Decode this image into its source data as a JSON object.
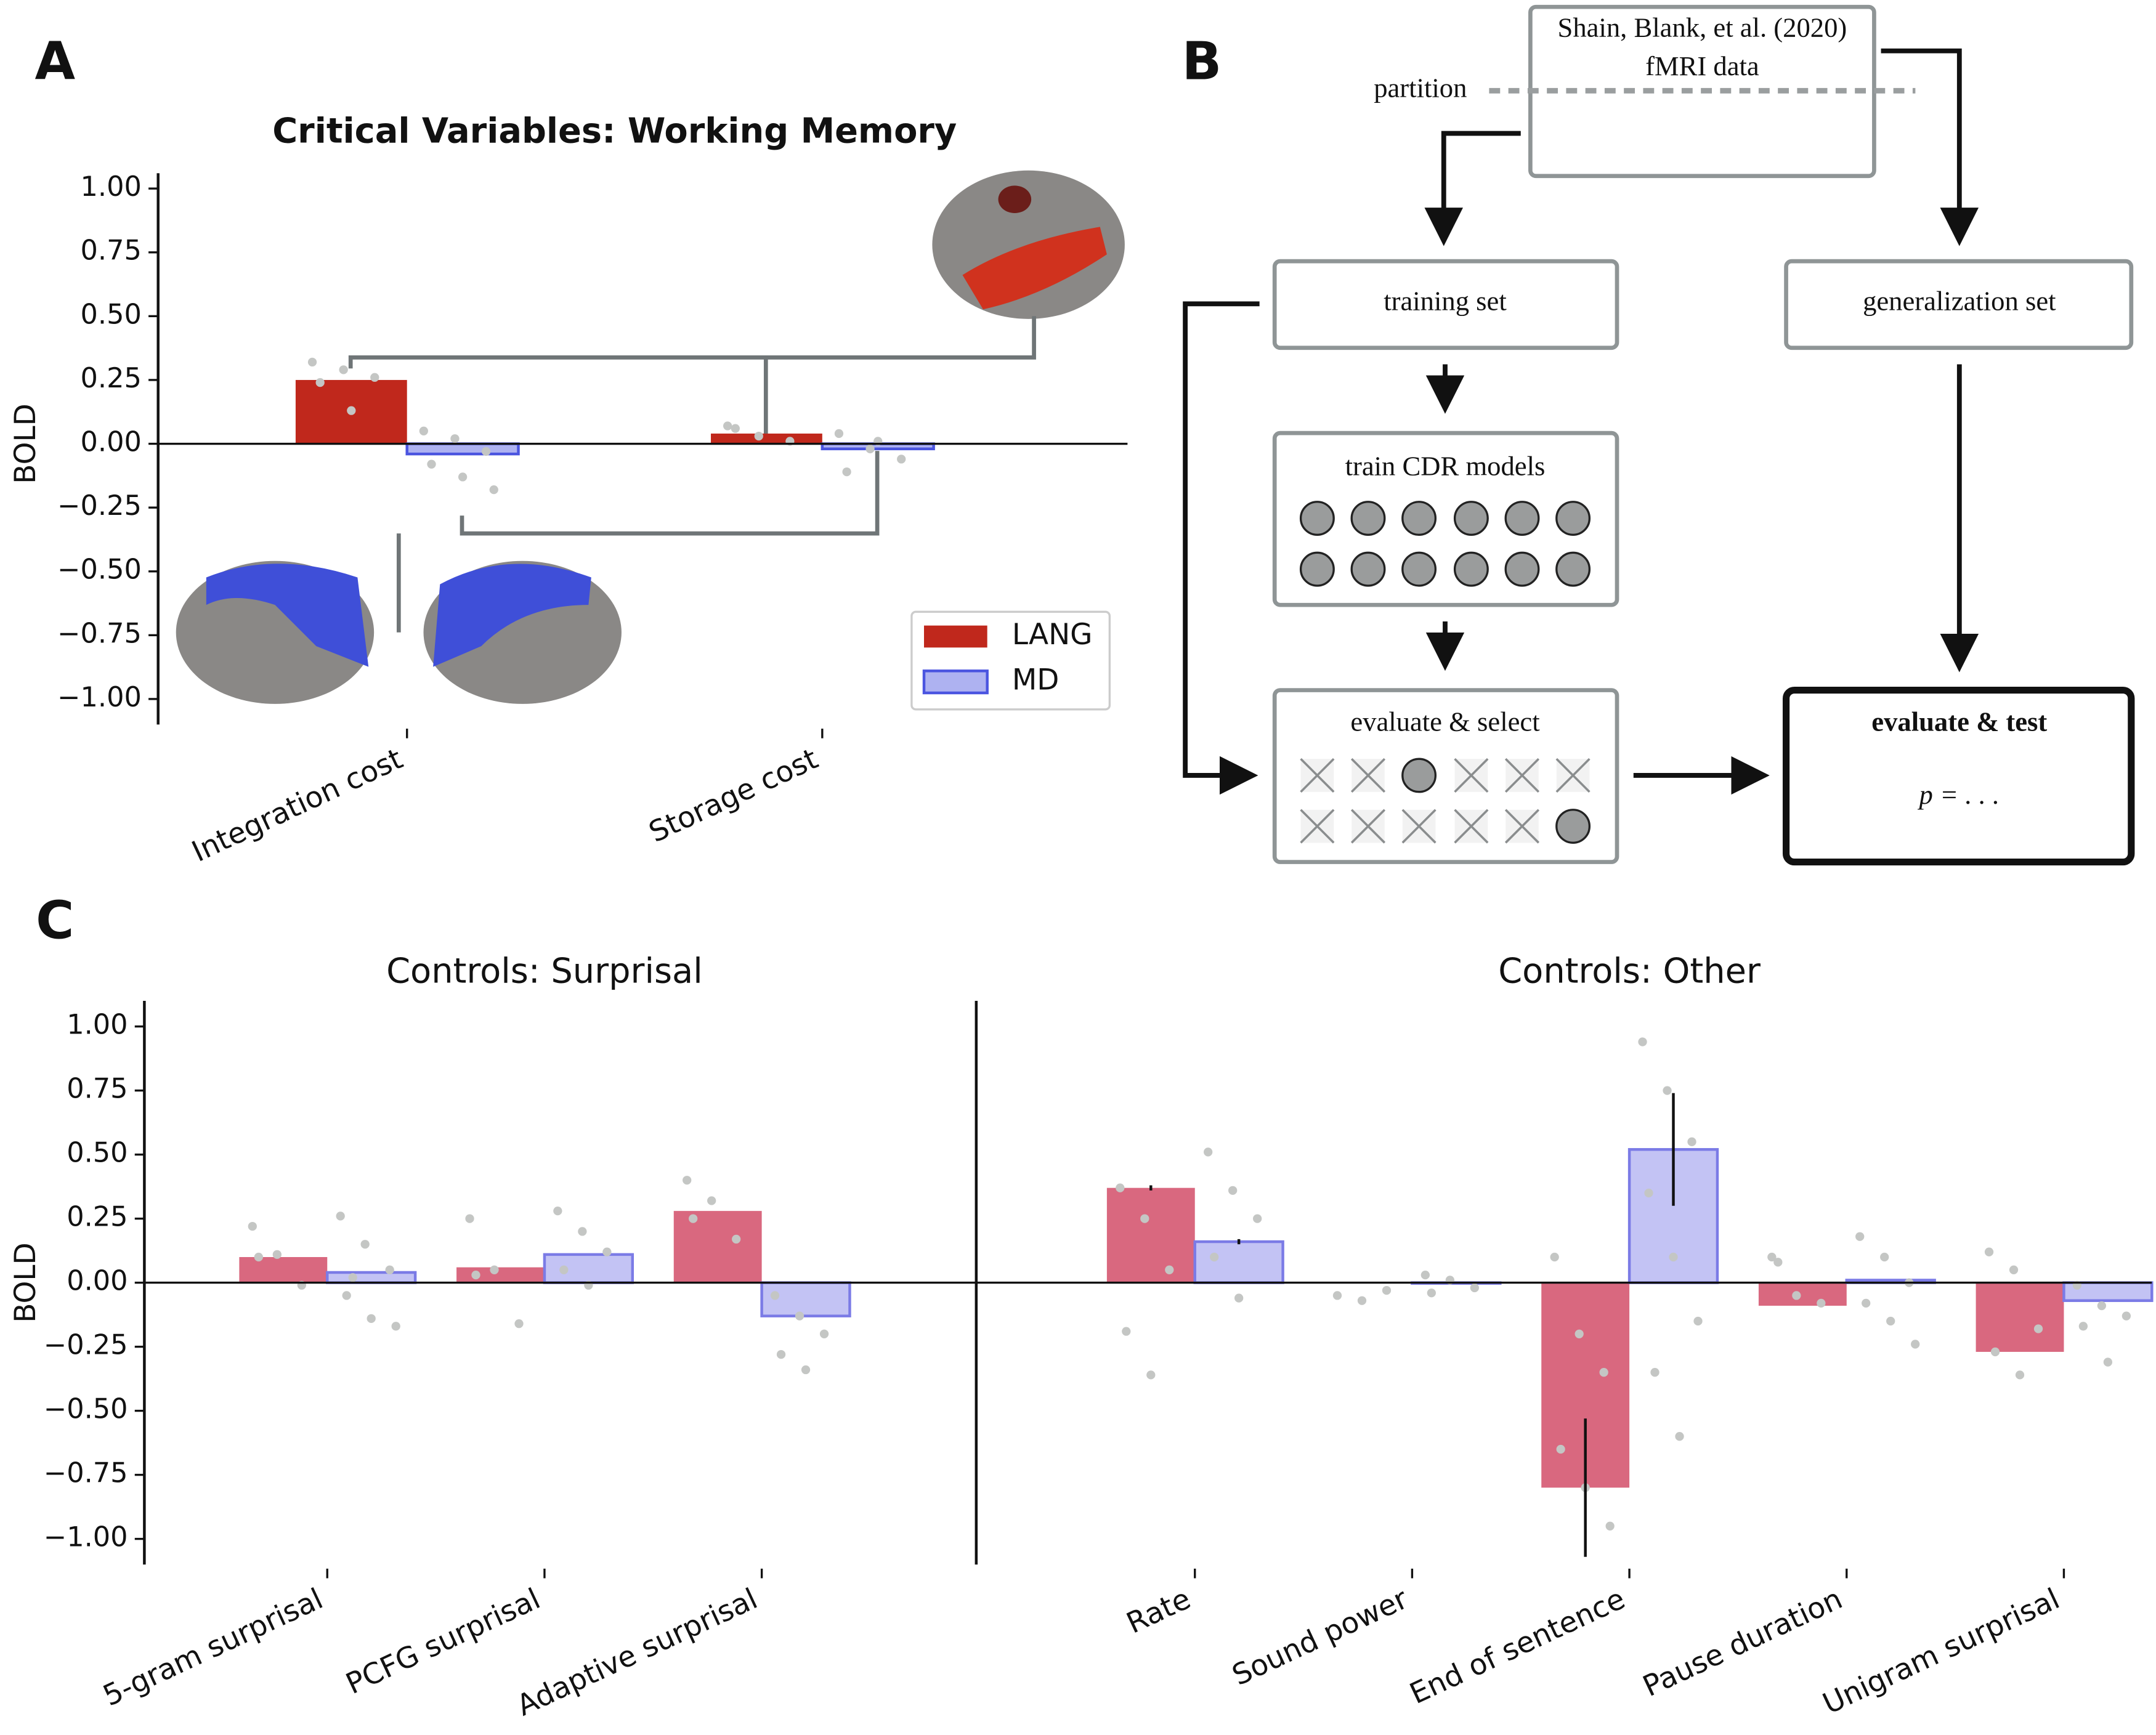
{
  "panel_labels": [
    "A",
    "B",
    "C"
  ],
  "chart_data": [
    {
      "type": "bar",
      "title": "Critical Variables: Working Memory",
      "ylabel": "BOLD",
      "categories": [
        "Integration cost",
        "Storage cost"
      ],
      "series": [
        {
          "name": "LANG",
          "color": "#c0281c",
          "values": [
            0.25,
            0.04
          ],
          "points": [
            [
              0.32,
              0.29,
              0.26,
              0.24,
              0.13
            ],
            [
              0.07,
              0.03,
              0.01,
              0.06
            ]
          ]
        },
        {
          "name": "MD",
          "color": "#4b55e0",
          "values": [
            -0.04,
            -0.02
          ],
          "points": [
            [
              0.05,
              0.02,
              -0.03,
              -0.08,
              -0.13,
              -0.18
            ],
            [
              0.04,
              -0.02,
              -0.06,
              -0.11,
              0.01
            ]
          ]
        }
      ],
      "ylim": [
        -1.1,
        1.06
      ],
      "yticks": [
        {
          "value": 1,
          "label": "1.00"
        },
        {
          "value": 0.75,
          "label": "0.75"
        },
        {
          "value": 0.5,
          "label": "0.50"
        },
        {
          "value": 0.25,
          "label": "0.25"
        },
        {
          "value": 0,
          "label": "0.00"
        },
        {
          "value": -0.25,
          "label": "−0.25"
        },
        {
          "value": -0.5,
          "label": "−0.50"
        },
        {
          "value": -0.75,
          "label": "−0.75"
        },
        {
          "value": -1,
          "label": "−1.00"
        }
      ],
      "legend": "lower right"
    },
    {
      "type": "bar",
      "title": "Controls: Surprisal",
      "ylabel": "BOLD",
      "categories": [
        "5-gram surprisal",
        "PCFG surprisal",
        "Adaptive surprisal"
      ],
      "series": [
        {
          "color": "#d9687f",
          "values": [
            0.1,
            0.06,
            0.28
          ],
          "points": [
            [
              0.22,
              0.11,
              -0.01,
              0.1
            ],
            [
              0.25,
              0.05,
              -0.16,
              0.03
            ],
            [
              0.4,
              0.32,
              0.17,
              0.25
            ]
          ]
        },
        {
          "color": "#7b7be6",
          "values": [
            0.04,
            0.11,
            -0.13
          ],
          "points": [
            [
              0.26,
              0.15,
              0.05,
              -0.05,
              -0.14,
              -0.17,
              0.02
            ],
            [
              0.28,
              0.2,
              0.12,
              0.05,
              -0.01
            ],
            [
              -0.05,
              -0.13,
              -0.2,
              -0.28,
              -0.34
            ]
          ]
        }
      ],
      "ylim": [
        -1.1,
        1.1
      ],
      "yticks": [
        {
          "value": 1,
          "label": "1.00"
        },
        {
          "value": 0.75,
          "label": "0.75"
        },
        {
          "value": 0.5,
          "label": "0.50"
        },
        {
          "value": 0.25,
          "label": "0.25"
        },
        {
          "value": 0,
          "label": "0.00"
        },
        {
          "value": -0.25,
          "label": "−0.25"
        },
        {
          "value": -0.5,
          "label": "−0.50"
        },
        {
          "value": -0.75,
          "label": "−0.75"
        },
        {
          "value": -1,
          "label": "−1.00"
        }
      ]
    },
    {
      "type": "bar",
      "title": "Controls: Other",
      "categories": [
        "Rate",
        "Sound power",
        "End of sentence",
        "Pause duration",
        "Unigram surprisal"
      ],
      "series": [
        {
          "color": "#d9687f",
          "values": [
            0.37,
            0.0,
            -0.8,
            -0.09,
            -0.27
          ],
          "errors": [
            0.01,
            0,
            0.27,
            0,
            0
          ],
          "points": [
            [
              0.37,
              0.25,
              0.05,
              -0.19,
              -0.36
            ],
            [
              -0.05,
              -0.07,
              -0.03
            ],
            [
              0.1,
              -0.2,
              -0.35,
              -0.65,
              -0.8,
              -0.95
            ],
            [
              0.1,
              -0.05,
              -0.08,
              0.08
            ],
            [
              0.12,
              0.05,
              -0.18,
              -0.27,
              -0.36
            ]
          ]
        },
        {
          "color": "#7b7be6",
          "values": [
            0.16,
            0.0,
            0.52,
            0.01,
            -0.07
          ],
          "errors": [
            0.01,
            0,
            0.22,
            0,
            0
          ],
          "points": [
            [
              0.51,
              0.36,
              0.25,
              0.1,
              -0.06
            ],
            [
              0.03,
              0.01,
              -0.02,
              -0.04
            ],
            [
              0.94,
              0.75,
              0.55,
              0.35,
              0.1,
              -0.15,
              -0.35,
              -0.6
            ],
            [
              0.18,
              0.1,
              0.0,
              -0.08,
              -0.15,
              -0.24
            ],
            [
              -0.01,
              -0.09,
              -0.13,
              -0.17,
              -0.31
            ]
          ]
        }
      ],
      "ylim": [
        -1.1,
        1.1
      ]
    }
  ],
  "diagram": {
    "source": [
      "Shain, Blank, et al. (2020)",
      "fMRI data"
    ],
    "partition": "partition",
    "training": "training set",
    "generalization": "generalization set",
    "train": "train CDR models",
    "select": "evaluate & select",
    "test": "evaluate & test",
    "p": "p = . . ."
  }
}
